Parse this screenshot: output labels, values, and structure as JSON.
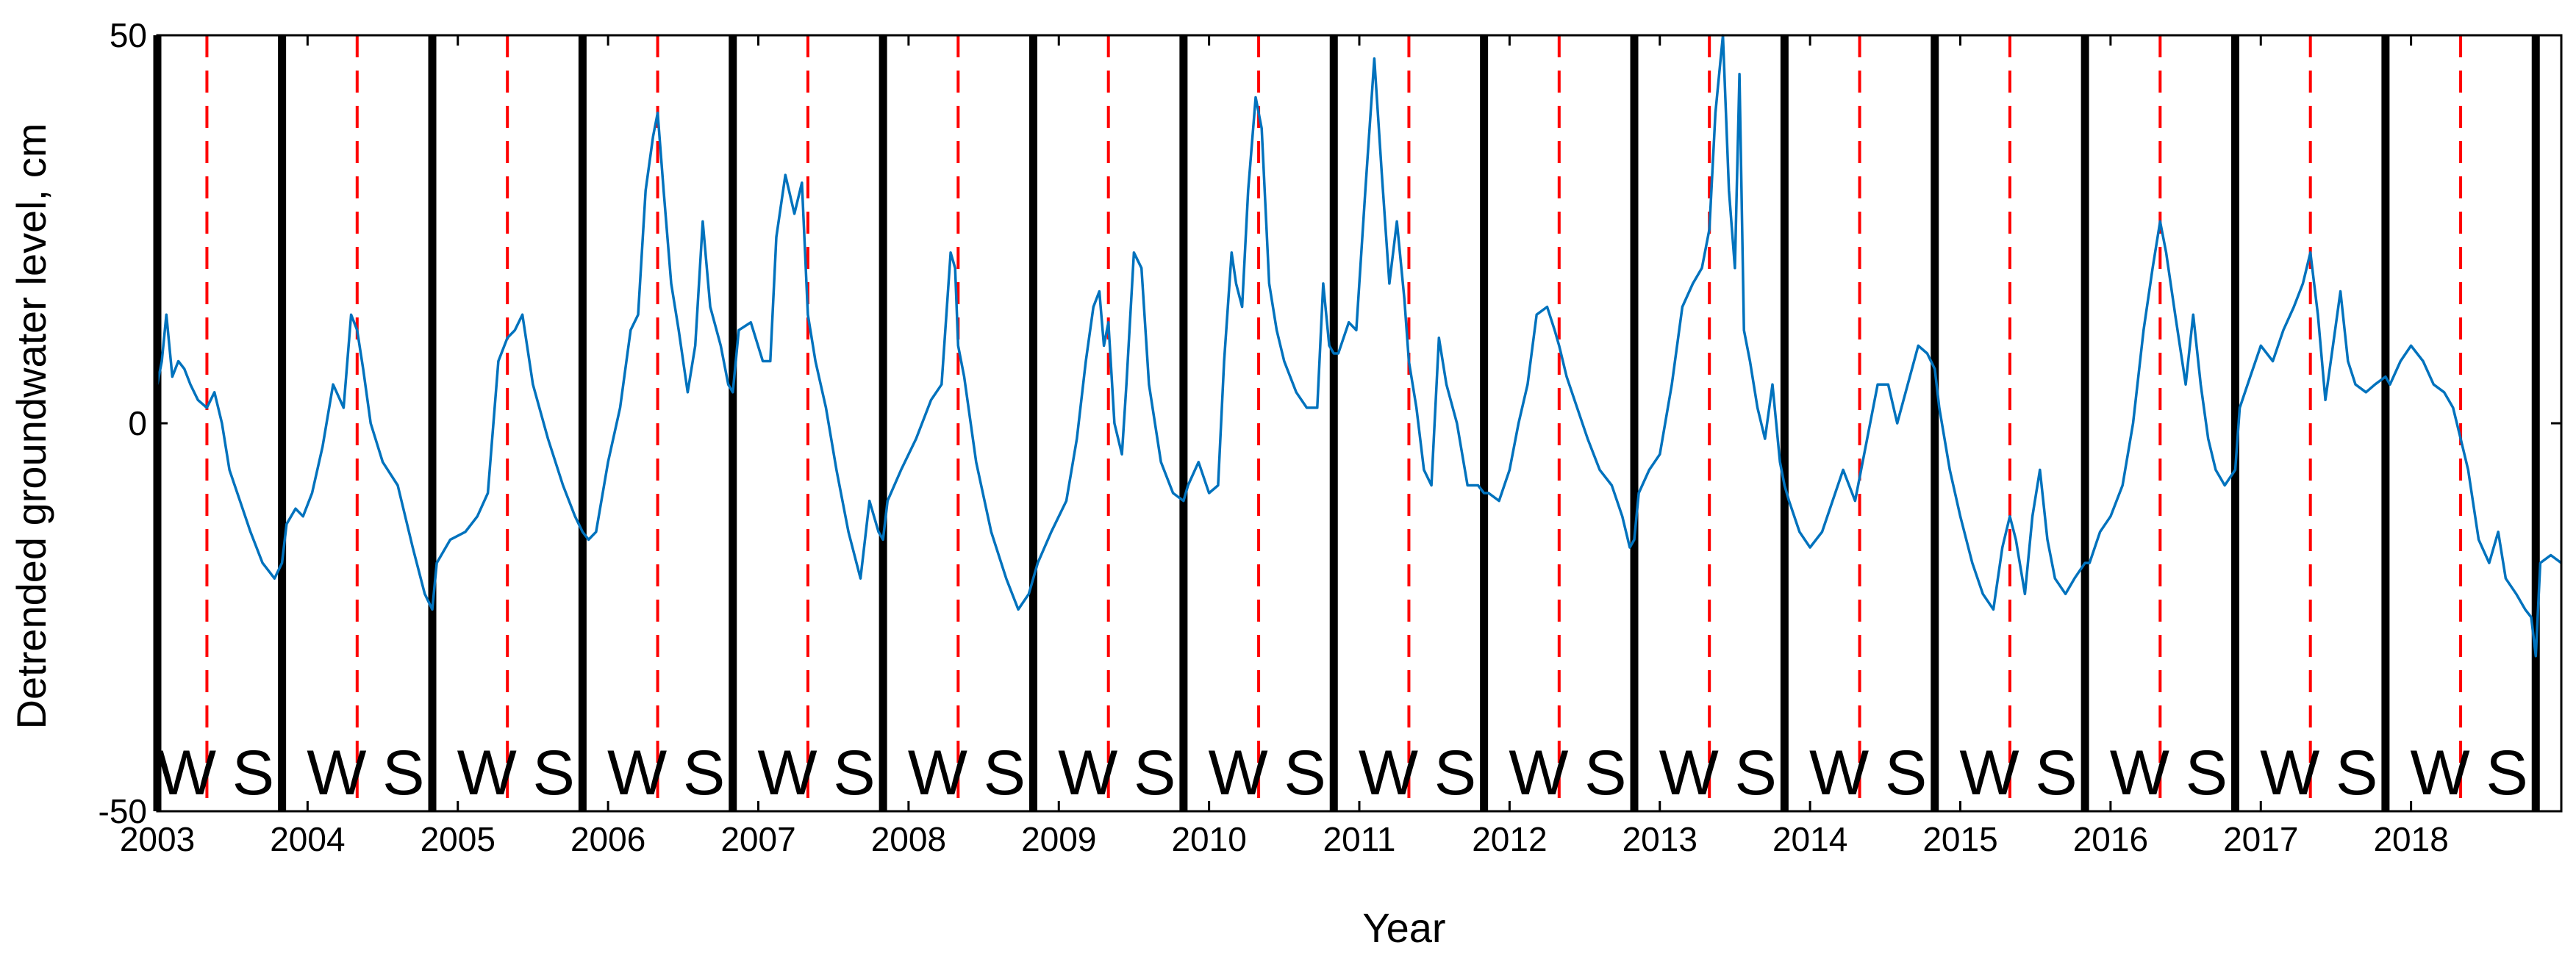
{
  "chart_data": {
    "type": "line",
    "title": "",
    "xlabel": "Year",
    "ylabel": "Detrended groundwater level, cm",
    "xlim": [
      2003.0,
      2019.0
    ],
    "ylim": [
      -50,
      50
    ],
    "y_ticks": [
      -50,
      0,
      50
    ],
    "x_ticks": [
      2003,
      2004,
      2005,
      2006,
      2007,
      2008,
      2009,
      2010,
      2011,
      2012,
      2013,
      2014,
      2015,
      2016,
      2017,
      2018
    ],
    "x_tick_labels": [
      "2003",
      "2004",
      "2005",
      "2006",
      "2007",
      "2008",
      "2009",
      "2010",
      "2011",
      "2012",
      "2013",
      "2014",
      "2015",
      "2016",
      "2017",
      "2018"
    ],
    "grid": false,
    "legend": "none",
    "colors": {
      "series": "#0072BD",
      "season_boundary": "#000000",
      "mid_line": "#FF0000"
    },
    "season_boundaries": [
      2003.0,
      2003.83,
      2004.83,
      2005.83,
      2006.83,
      2007.83,
      2008.83,
      2009.83,
      2010.83,
      2011.83,
      2012.83,
      2013.83,
      2014.83,
      2015.83,
      2016.83,
      2017.83,
      2018.83
    ],
    "mid_lines": [
      2003.33,
      2004.33,
      2005.33,
      2006.33,
      2007.33,
      2008.33,
      2009.33,
      2010.33,
      2011.33,
      2012.33,
      2013.33,
      2014.33,
      2015.33,
      2016.33,
      2017.33,
      2018.33
    ],
    "season_labels": {
      "winter": "W",
      "summer": "S"
    },
    "series": [
      {
        "x": [
          2003.0,
          2003.03,
          2003.06,
          2003.1,
          2003.14,
          2003.18,
          2003.22,
          2003.27,
          2003.33,
          2003.38,
          2003.43,
          2003.48,
          2003.55,
          2003.62,
          2003.7,
          2003.78,
          2003.83,
          2003.86,
          2003.92,
          2003.97,
          2004.03,
          2004.1,
          2004.17,
          2004.24,
          2004.29,
          2004.33,
          2004.37,
          2004.42,
          2004.5,
          2004.6,
          2004.7,
          2004.78,
          2004.83,
          2004.86,
          2004.95,
          2005.05,
          2005.13,
          2005.2,
          2005.27,
          2005.33,
          2005.38,
          2005.43,
          2005.5,
          2005.6,
          2005.7,
          2005.78,
          2005.83,
          2005.87,
          2005.92,
          2006.0,
          2006.08,
          2006.15,
          2006.2,
          2006.25,
          2006.3,
          2006.33,
          2006.37,
          2006.42,
          2006.47,
          2006.53,
          2006.58,
          2006.63,
          2006.68,
          2006.75,
          2006.8,
          2006.83,
          2006.87,
          2006.95,
          2007.03,
          2007.08,
          2007.12,
          2007.18,
          2007.24,
          2007.29,
          2007.33,
          2007.38,
          2007.45,
          2007.52,
          2007.6,
          2007.68,
          2007.74,
          2007.8,
          2007.83,
          2007.86,
          2007.95,
          2008.05,
          2008.15,
          2008.22,
          2008.28,
          2008.31,
          2008.33,
          2008.37,
          2008.45,
          2008.55,
          2008.65,
          2008.73,
          2008.8,
          2008.83,
          2008.86,
          2008.95,
          2009.05,
          2009.12,
          2009.18,
          2009.23,
          2009.27,
          2009.3,
          2009.33,
          2009.37,
          2009.42,
          2009.45,
          2009.5,
          2009.55,
          2009.6,
          2009.68,
          2009.76,
          2009.83,
          2009.86,
          2009.93,
          2010.0,
          2010.06,
          2010.1,
          2010.15,
          2010.18,
          2010.22,
          2010.26,
          2010.31,
          2010.35,
          2010.4,
          2010.45,
          2010.5,
          2010.58,
          2010.65,
          2010.72,
          2010.76,
          2010.8,
          2010.83,
          2010.86,
          2010.93,
          2010.98,
          2011.04,
          2011.1,
          2011.15,
          2011.2,
          2011.25,
          2011.3,
          2011.33,
          2011.38,
          2011.43,
          2011.48,
          2011.53,
          2011.58,
          2011.65,
          2011.72,
          2011.79,
          2011.83,
          2011.86,
          2011.93,
          2012.0,
          2012.06,
          2012.12,
          2012.18,
          2012.25,
          2012.3,
          2012.33,
          2012.38,
          2012.45,
          2012.52,
          2012.6,
          2012.68,
          2012.75,
          2012.8,
          2012.83,
          2012.86,
          2012.93,
          2013.0,
          2013.08,
          2013.15,
          2013.22,
          2013.28,
          2013.33,
          2013.37,
          2013.42,
          2013.46,
          2013.5,
          2013.53,
          2013.56,
          2013.6,
          2013.65,
          2013.7,
          2013.75,
          2013.8,
          2013.83,
          2013.86,
          2013.93,
          2014.0,
          2014.08,
          2014.15,
          2014.22,
          2014.3,
          2014.38,
          2014.45,
          2014.52,
          2014.58,
          2014.65,
          2014.72,
          2014.78,
          2014.83,
          2014.86,
          2014.93,
          2015.0,
          2015.08,
          2015.15,
          2015.22,
          2015.28,
          2015.33,
          2015.37,
          2015.43,
          2015.48,
          2015.53,
          2015.58,
          2015.63,
          2015.7,
          2015.76,
          2015.83,
          2015.86,
          2015.93,
          2016.0,
          2016.08,
          2016.15,
          2016.22,
          2016.28,
          2016.33,
          2016.37,
          2016.43,
          2016.5,
          2016.55,
          2016.6,
          2016.65,
          2016.7,
          2016.76,
          2016.83,
          2016.86,
          2016.93,
          2017.0,
          2017.08,
          2017.15,
          2017.22,
          2017.28,
          2017.33,
          2017.38,
          2017.43,
          2017.48,
          2017.53,
          2017.58,
          2017.63,
          2017.7,
          2017.76,
          2017.83,
          2017.86,
          2017.93,
          2018.0,
          2018.08,
          2018.15,
          2018.22,
          2018.28,
          2018.33,
          2018.38,
          2018.45,
          2018.52,
          2018.58,
          2018.63,
          2018.7,
          2018.76,
          2018.8,
          2018.83,
          2018.86,
          2018.93,
          2019.0
        ],
        "values": [
          5,
          8,
          14,
          6,
          8,
          7,
          5,
          3,
          2,
          4,
          0,
          -6,
          -10,
          -14,
          -18,
          -20,
          -18,
          -13,
          -11,
          -12,
          -9,
          -3,
          5,
          2,
          14,
          12,
          7,
          0,
          -5,
          -8,
          -16,
          -22,
          -24,
          -18,
          -15,
          -14,
          -12,
          -9,
          8,
          11,
          12,
          14,
          5,
          -2,
          -8,
          -12,
          -14,
          -15,
          -14,
          -5,
          2,
          12,
          14,
          30,
          37,
          40,
          30,
          18,
          12,
          4,
          10,
          26,
          15,
          10,
          5,
          4,
          12,
          13,
          8,
          8,
          24,
          32,
          27,
          31,
          14,
          8,
          2,
          -6,
          -14,
          -20,
          -10,
          -14,
          -15,
          -10,
          -6,
          -2,
          3,
          5,
          22,
          20,
          10,
          6,
          -5,
          -14,
          -20,
          -24,
          -22,
          -20,
          -18,
          -14,
          -10,
          -2,
          8,
          15,
          17,
          10,
          13,
          0,
          -4,
          5,
          22,
          20,
          5,
          -5,
          -9,
          -10,
          -8,
          -5,
          -9,
          -8,
          8,
          22,
          18,
          15,
          30,
          42,
          38,
          18,
          12,
          8,
          4,
          2,
          2,
          18,
          10,
          9,
          9,
          13,
          12,
          30,
          47,
          32,
          18,
          26,
          16,
          8,
          2,
          -6,
          -8,
          11,
          5,
          0,
          -8,
          -8,
          -9,
          -9,
          -10,
          -6,
          0,
          5,
          14,
          15,
          12,
          10,
          6,
          2,
          -2,
          -6,
          -8,
          -12,
          -16,
          -15,
          -9,
          -6,
          -4,
          5,
          15,
          18,
          20,
          25,
          40,
          50,
          30,
          20,
          45,
          12,
          8,
          2,
          -2,
          5,
          -5,
          -8,
          -10,
          -14,
          -16,
          -14,
          -10,
          -6,
          -10,
          -2,
          5,
          5,
          0,
          5,
          10,
          9,
          7,
          2,
          -6,
          -12,
          -18,
          -22,
          -24,
          -16,
          -12,
          -15,
          -22,
          -12,
          -6,
          -15,
          -20,
          -22,
          -20,
          -18,
          -18,
          -14,
          -12,
          -8,
          0,
          12,
          20,
          26,
          22,
          14,
          5,
          14,
          5,
          -2,
          -6,
          -8,
          -6,
          2,
          6,
          10,
          8,
          12,
          15,
          18,
          22,
          14,
          3,
          10,
          17,
          8,
          5,
          4,
          5,
          6,
          5,
          8,
          10,
          8,
          5,
          4,
          2,
          -2,
          -6,
          -15,
          -18,
          -14,
          -20,
          -22,
          -24,
          -25,
          -30,
          -18,
          -17,
          -18
        ]
      }
    ]
  }
}
